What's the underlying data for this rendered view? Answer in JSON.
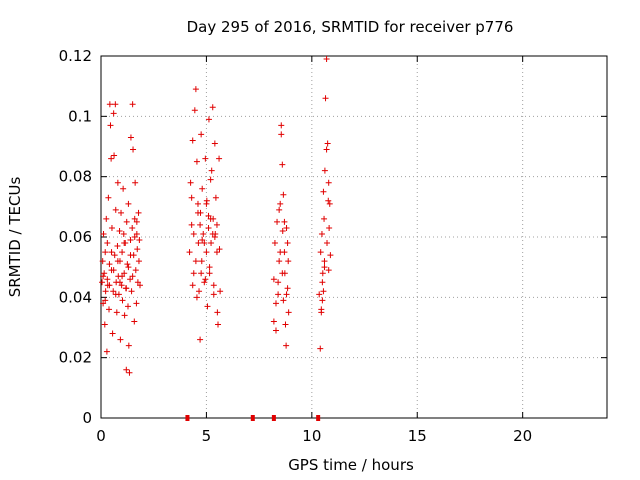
{
  "chart_data": {
    "type": "scatter",
    "title": "Day 295 of 2016, SRMTID for receiver p776",
    "xlabel": "GPS time / hours",
    "ylabel": "SRMTID / TECUs",
    "xlim": [
      0,
      24
    ],
    "ylim": [
      0,
      0.12
    ],
    "x_ticks": [
      0,
      5,
      10,
      15,
      20
    ],
    "y_ticks": [
      0,
      0.02,
      0.04,
      0.06,
      0.08,
      0.1,
      0.12
    ],
    "x_tick_labels": [
      "0",
      "5",
      "10",
      "15",
      "20"
    ],
    "y_tick_labels": [
      "0",
      "0.02",
      "0.04",
      "0.06",
      "0.08",
      "0.1",
      "0.12"
    ],
    "grid": true,
    "grid_style": "dotted",
    "marker": "+",
    "marker_color": "#e00000",
    "x_axis_markers": [
      4.1,
      7.2,
      8.2,
      10.3
    ],
    "series": [
      {
        "points": [
          [
            0.05,
            0.045
          ],
          [
            0.08,
            0.052
          ],
          [
            0.1,
            0.038
          ],
          [
            0.12,
            0.061
          ],
          [
            0.15,
            0.048
          ],
          [
            0.18,
            0.031
          ],
          [
            0.2,
            0.055
          ],
          [
            0.22,
            0.042
          ],
          [
            0.25,
            0.066
          ],
          [
            0.28,
            0.022
          ],
          [
            0.3,
            0.058
          ],
          [
            0.32,
            0.044
          ],
          [
            0.35,
            0.073
          ],
          [
            0.38,
            0.036
          ],
          [
            0.4,
            0.051
          ],
          [
            0.42,
            0.104
          ],
          [
            0.45,
            0.097
          ],
          [
            0.48,
            0.086
          ],
          [
            0.5,
            0.049
          ],
          [
            0.52,
            0.063
          ],
          [
            0.55,
            0.028
          ],
          [
            0.58,
            0.042
          ],
          [
            0.6,
            0.101
          ],
          [
            0.62,
            0.087
          ],
          [
            0.65,
            0.054
          ],
          [
            0.68,
            0.104
          ],
          [
            0.7,
            0.069
          ],
          [
            0.72,
            0.045
          ],
          [
            0.75,
            0.035
          ],
          [
            0.78,
            0.057
          ],
          [
            0.8,
            0.078
          ],
          [
            0.82,
            0.047
          ],
          [
            0.85,
            0.041
          ],
          [
            0.88,
            0.062
          ],
          [
            0.9,
            0.052
          ],
          [
            0.92,
            0.026
          ],
          [
            0.95,
            0.068
          ],
          [
            0.98,
            0.044
          ],
          [
            1.0,
            0.055
          ],
          [
            1.02,
            0.039
          ],
          [
            1.05,
            0.076
          ],
          [
            1.08,
            0.061
          ],
          [
            1.1,
            0.048
          ],
          [
            1.12,
            0.034
          ],
          [
            1.15,
            0.058
          ],
          [
            1.18,
            0.043
          ],
          [
            1.2,
            0.016
          ],
          [
            1.22,
            0.065
          ],
          [
            1.25,
            0.051
          ],
          [
            1.28,
            0.037
          ],
          [
            1.3,
            0.071
          ],
          [
            1.32,
            0.024
          ],
          [
            1.35,
            0.015
          ],
          [
            1.38,
            0.046
          ],
          [
            1.4,
            0.059
          ],
          [
            1.42,
            0.093
          ],
          [
            1.45,
            0.042
          ],
          [
            1.48,
            0.063
          ],
          [
            1.5,
            0.104
          ],
          [
            1.52,
            0.089
          ],
          [
            1.55,
            0.054
          ],
          [
            1.58,
            0.032
          ],
          [
            1.6,
            0.066
          ],
          [
            1.62,
            0.078
          ],
          [
            1.65,
            0.049
          ],
          [
            1.68,
            0.038
          ],
          [
            1.7,
            0.061
          ],
          [
            1.72,
            0.056
          ],
          [
            1.75,
            0.045
          ],
          [
            1.78,
            0.068
          ],
          [
            1.8,
            0.052
          ],
          [
            1.82,
            0.059
          ],
          [
            1.85,
            0.044
          ],
          [
            0.1,
            0.047
          ],
          [
            0.2,
            0.039
          ],
          [
            0.3,
            0.046
          ],
          [
            0.4,
            0.044
          ],
          [
            0.5,
            0.055
          ],
          [
            0.6,
            0.049
          ],
          [
            0.7,
            0.041
          ],
          [
            0.8,
            0.052
          ],
          [
            0.9,
            0.045
          ],
          [
            1.0,
            0.047
          ],
          [
            1.1,
            0.058
          ],
          [
            1.2,
            0.043
          ],
          [
            1.3,
            0.05
          ],
          [
            1.4,
            0.054
          ],
          [
            1.5,
            0.047
          ],
          [
            1.6,
            0.06
          ],
          [
            1.7,
            0.065
          ],
          [
            4.2,
            0.055
          ],
          [
            4.25,
            0.078
          ],
          [
            4.3,
            0.064
          ],
          [
            4.35,
            0.092
          ],
          [
            4.4,
            0.048
          ],
          [
            4.45,
            0.102
          ],
          [
            4.5,
            0.109
          ],
          [
            4.55,
            0.085
          ],
          [
            4.6,
            0.071
          ],
          [
            4.62,
            0.058
          ],
          [
            4.65,
            0.042
          ],
          [
            4.7,
            0.026
          ],
          [
            4.72,
            0.068
          ],
          [
            4.75,
            0.094
          ],
          [
            4.78,
            0.052
          ],
          [
            4.8,
            0.076
          ],
          [
            4.85,
            0.061
          ],
          [
            4.9,
            0.045
          ],
          [
            4.95,
            0.086
          ],
          [
            5.0,
            0.055
          ],
          [
            5.02,
            0.072
          ],
          [
            5.05,
            0.037
          ],
          [
            5.1,
            0.063
          ],
          [
            5.12,
            0.099
          ],
          [
            5.15,
            0.048
          ],
          [
            5.2,
            0.079
          ],
          [
            5.22,
            0.058
          ],
          [
            5.25,
            0.082
          ],
          [
            5.3,
            0.103
          ],
          [
            5.32,
            0.066
          ],
          [
            5.35,
            0.044
          ],
          [
            5.4,
            0.091
          ],
          [
            5.42,
            0.061
          ],
          [
            5.45,
            0.073
          ],
          [
            5.5,
            0.055
          ],
          [
            5.52,
            0.035
          ],
          [
            5.55,
            0.031
          ],
          [
            5.6,
            0.086
          ],
          [
            5.62,
            0.056
          ],
          [
            5.65,
            0.042
          ],
          [
            4.3,
            0.073
          ],
          [
            4.5,
            0.052
          ],
          [
            4.7,
            0.064
          ],
          [
            4.9,
            0.058
          ],
          [
            5.1,
            0.067
          ],
          [
            5.3,
            0.061
          ],
          [
            5.5,
            0.064
          ],
          [
            4.4,
            0.061
          ],
          [
            4.6,
            0.068
          ],
          [
            4.8,
            0.059
          ],
          [
            5.0,
            0.071
          ],
          [
            5.2,
            0.066
          ],
          [
            5.4,
            0.06
          ],
          [
            4.35,
            0.044
          ],
          [
            4.55,
            0.04
          ],
          [
            4.75,
            0.048
          ],
          [
            4.95,
            0.046
          ],
          [
            5.15,
            0.05
          ],
          [
            5.35,
            0.041
          ],
          [
            8.2,
            0.046
          ],
          [
            8.25,
            0.058
          ],
          [
            8.3,
            0.029
          ],
          [
            8.35,
            0.065
          ],
          [
            8.4,
            0.041
          ],
          [
            8.45,
            0.052
          ],
          [
            8.5,
            0.071
          ],
          [
            8.55,
            0.094
          ],
          [
            8.6,
            0.084
          ],
          [
            8.62,
            0.062
          ],
          [
            8.65,
            0.039
          ],
          [
            8.7,
            0.055
          ],
          [
            8.72,
            0.048
          ],
          [
            8.75,
            0.031
          ],
          [
            8.78,
            0.024
          ],
          [
            8.8,
            0.063
          ],
          [
            8.85,
            0.043
          ],
          [
            8.88,
            0.052
          ],
          [
            8.9,
            0.035
          ],
          [
            8.3,
            0.038
          ],
          [
            8.4,
            0.045
          ],
          [
            8.5,
            0.055
          ],
          [
            8.6,
            0.048
          ],
          [
            8.7,
            0.065
          ],
          [
            8.8,
            0.041
          ],
          [
            8.2,
            0.032
          ],
          [
            8.45,
            0.069
          ],
          [
            8.65,
            0.074
          ],
          [
            8.85,
            0.058
          ],
          [
            8.55,
            0.097
          ],
          [
            10.35,
            0.041
          ],
          [
            10.4,
            0.023
          ],
          [
            10.42,
            0.055
          ],
          [
            10.45,
            0.036
          ],
          [
            10.48,
            0.061
          ],
          [
            10.5,
            0.039
          ],
          [
            10.52,
            0.048
          ],
          [
            10.55,
            0.075
          ],
          [
            10.58,
            0.066
          ],
          [
            10.6,
            0.052
          ],
          [
            10.62,
            0.082
          ],
          [
            10.65,
            0.106
          ],
          [
            10.7,
            0.119
          ],
          [
            10.72,
            0.058
          ],
          [
            10.75,
            0.091
          ],
          [
            10.78,
            0.072
          ],
          [
            10.8,
            0.049
          ],
          [
            10.82,
            0.063
          ],
          [
            10.85,
            0.071
          ],
          [
            10.88,
            0.054
          ],
          [
            10.5,
            0.045
          ],
          [
            10.6,
            0.05
          ],
          [
            10.7,
            0.089
          ],
          [
            10.8,
            0.078
          ],
          [
            10.45,
            0.035
          ],
          [
            10.55,
            0.042
          ]
        ]
      }
    ]
  }
}
